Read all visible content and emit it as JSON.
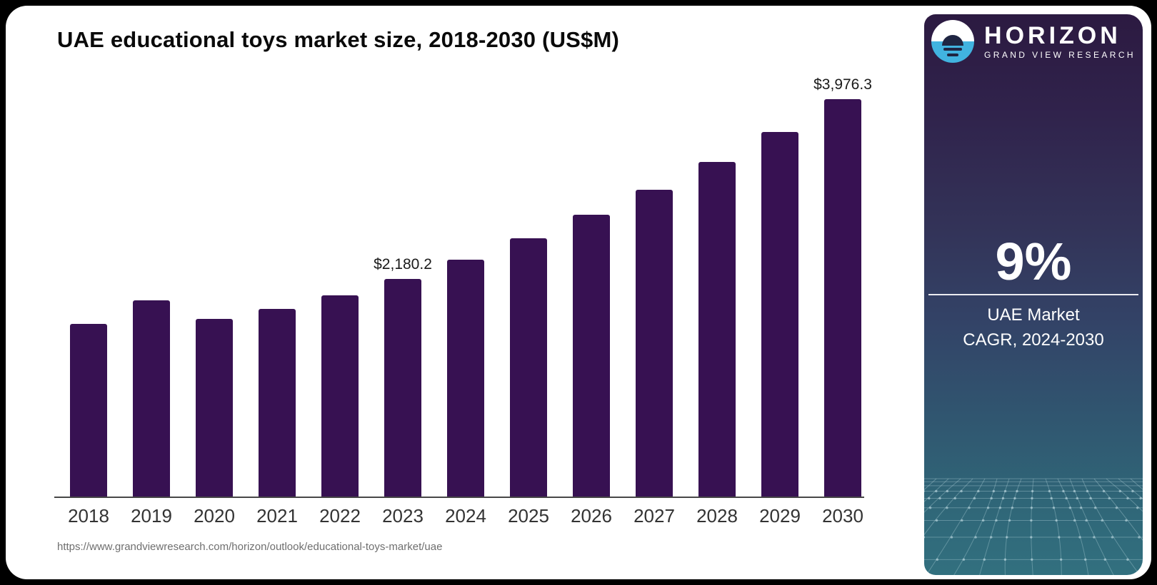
{
  "chart": {
    "title": "UAE educational toys market size, 2018-2030 (US$M)",
    "source_url": "https://www.grandviewresearch.com/horizon/outlook/educational-toys-market/uae"
  },
  "chart_data": {
    "type": "bar",
    "title": "UAE educational toys market size, 2018-2030 (US$M)",
    "categories": [
      "2018",
      "2019",
      "2020",
      "2021",
      "2022",
      "2023",
      "2024",
      "2025",
      "2026",
      "2027",
      "2028",
      "2029",
      "2030"
    ],
    "values": [
      1730,
      1965,
      1775,
      1880,
      2015,
      2180.2,
      2371.0,
      2584.4,
      2817.0,
      3070.5,
      3346.9,
      3648.1,
      3976.3
    ],
    "unit": "US$M",
    "xlabel": "",
    "ylabel": "",
    "ylim": [
      0,
      4100
    ],
    "grid": false,
    "legend": false,
    "bar_color": "#371152",
    "data_labels": [
      {
        "category": "2023",
        "text": "$2,180.2"
      },
      {
        "category": "2030",
        "text": "$3,976.3"
      }
    ]
  },
  "sidebar": {
    "brand": {
      "name": "HORIZON",
      "tagline": "GRAND VIEW RESEARCH"
    },
    "stat": {
      "value": "9%",
      "caption_line1": "UAE Market",
      "caption_line2": "CAGR, 2024-2030"
    },
    "colors": {
      "gradient_top": "#2c1a41",
      "gradient_middle": "#334367",
      "gradient_bottom": "#32707f",
      "logo_blue": "#41b3e0",
      "logo_navy": "#1f2542",
      "mesh_line": "rgba(195,225,232,0.33)"
    }
  }
}
